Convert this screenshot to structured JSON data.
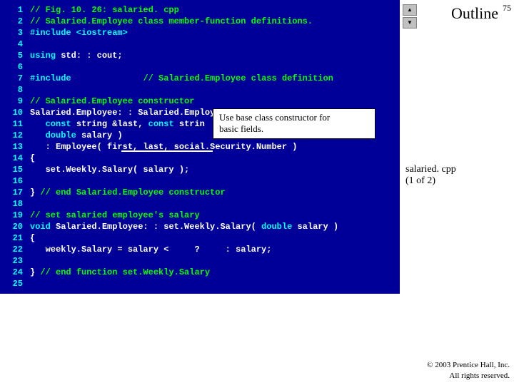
{
  "page_number": "75",
  "outline_label": "Outline",
  "file_label_line1": "salaried. cpp",
  "file_label_line2": "(1 of 2)",
  "copyright_line1": "© 2003 Prentice Hall, Inc.",
  "copyright_line2": "All rights reserved.",
  "callout_line1": "Use base class constructor for",
  "callout_line2": "basic fields.",
  "nav_up": "▲",
  "nav_down": "▼",
  "colors": {
    "code_bg": "#000099",
    "line_num": "#00ffff",
    "comment": "#00ff00",
    "preproc": "#00ffff",
    "keyword": "#00ffff",
    "normal": "#ffffff",
    "page_bg": "#ffffff"
  },
  "code": [
    {
      "n": "1",
      "seg": [
        {
          "c": "comment",
          "t": "// Fig. 10. 26: salaried. cpp"
        }
      ]
    },
    {
      "n": "2",
      "seg": [
        {
          "c": "comment",
          "t": "// Salaried.Employee class member-function definitions."
        }
      ]
    },
    {
      "n": "3",
      "seg": [
        {
          "c": "preproc",
          "t": "#include <iostream>"
        }
      ]
    },
    {
      "n": "4",
      "seg": []
    },
    {
      "n": "5",
      "seg": [
        {
          "c": "keyword",
          "t": "using"
        },
        {
          "c": "normal",
          "t": " std: : cout;"
        }
      ]
    },
    {
      "n": "6",
      "seg": []
    },
    {
      "n": "7",
      "seg": [
        {
          "c": "preproc",
          "t": "#include"
        },
        {
          "c": "normal",
          "t": "              "
        },
        {
          "c": "comment",
          "t": "// Salaried.Employee class definition"
        }
      ]
    },
    {
      "n": "8",
      "seg": []
    },
    {
      "n": "9",
      "seg": [
        {
          "c": "comment",
          "t": "// Salaried.Employee constructor"
        }
      ]
    },
    {
      "n": "10",
      "seg": [
        {
          "c": "normal",
          "t": "Salaried.Employee: : Salaried.Employee("
        }
      ]
    },
    {
      "n": "11",
      "seg": [
        {
          "c": "normal",
          "t": "   "
        },
        {
          "c": "keyword",
          "t": "const"
        },
        {
          "c": "normal",
          "t": " string &last, "
        },
        {
          "c": "keyword",
          "t": "const"
        },
        {
          "c": "normal",
          "t": " strin"
        }
      ]
    },
    {
      "n": "12",
      "seg": [
        {
          "c": "normal",
          "t": "   "
        },
        {
          "c": "keyword",
          "t": "double"
        },
        {
          "c": "normal",
          "t": " salary )"
        }
      ]
    },
    {
      "n": "13",
      "seg": [
        {
          "c": "normal",
          "t": "   : Employee( first, last, social.Security.Number )"
        }
      ]
    },
    {
      "n": "14",
      "seg": [
        {
          "c": "normal",
          "t": "{"
        }
      ]
    },
    {
      "n": "15",
      "seg": [
        {
          "c": "normal",
          "t": "   set.Weekly.Salary( salary );"
        }
      ]
    },
    {
      "n": "16",
      "seg": []
    },
    {
      "n": "17",
      "seg": [
        {
          "c": "normal",
          "t": "} "
        },
        {
          "c": "comment",
          "t": "// end Salaried.Employee constructor"
        }
      ]
    },
    {
      "n": "18",
      "seg": []
    },
    {
      "n": "19",
      "seg": [
        {
          "c": "comment",
          "t": "// set salaried employee's salary"
        }
      ]
    },
    {
      "n": "20",
      "seg": [
        {
          "c": "keyword",
          "t": "void"
        },
        {
          "c": "normal",
          "t": " Salaried.Employee: : set.Weekly.Salary( "
        },
        {
          "c": "keyword",
          "t": "double"
        },
        {
          "c": "normal",
          "t": " salary )"
        }
      ]
    },
    {
      "n": "21",
      "seg": [
        {
          "c": "normal",
          "t": "{"
        }
      ]
    },
    {
      "n": "22",
      "seg": [
        {
          "c": "normal",
          "t": "   weekly.Salary = salary <     ?     : salary;"
        }
      ]
    },
    {
      "n": "23",
      "seg": []
    },
    {
      "n": "24",
      "seg": [
        {
          "c": "normal",
          "t": "} "
        },
        {
          "c": "comment",
          "t": "// end function set.Weekly.Salary"
        }
      ]
    },
    {
      "n": "25",
      "seg": []
    }
  ]
}
